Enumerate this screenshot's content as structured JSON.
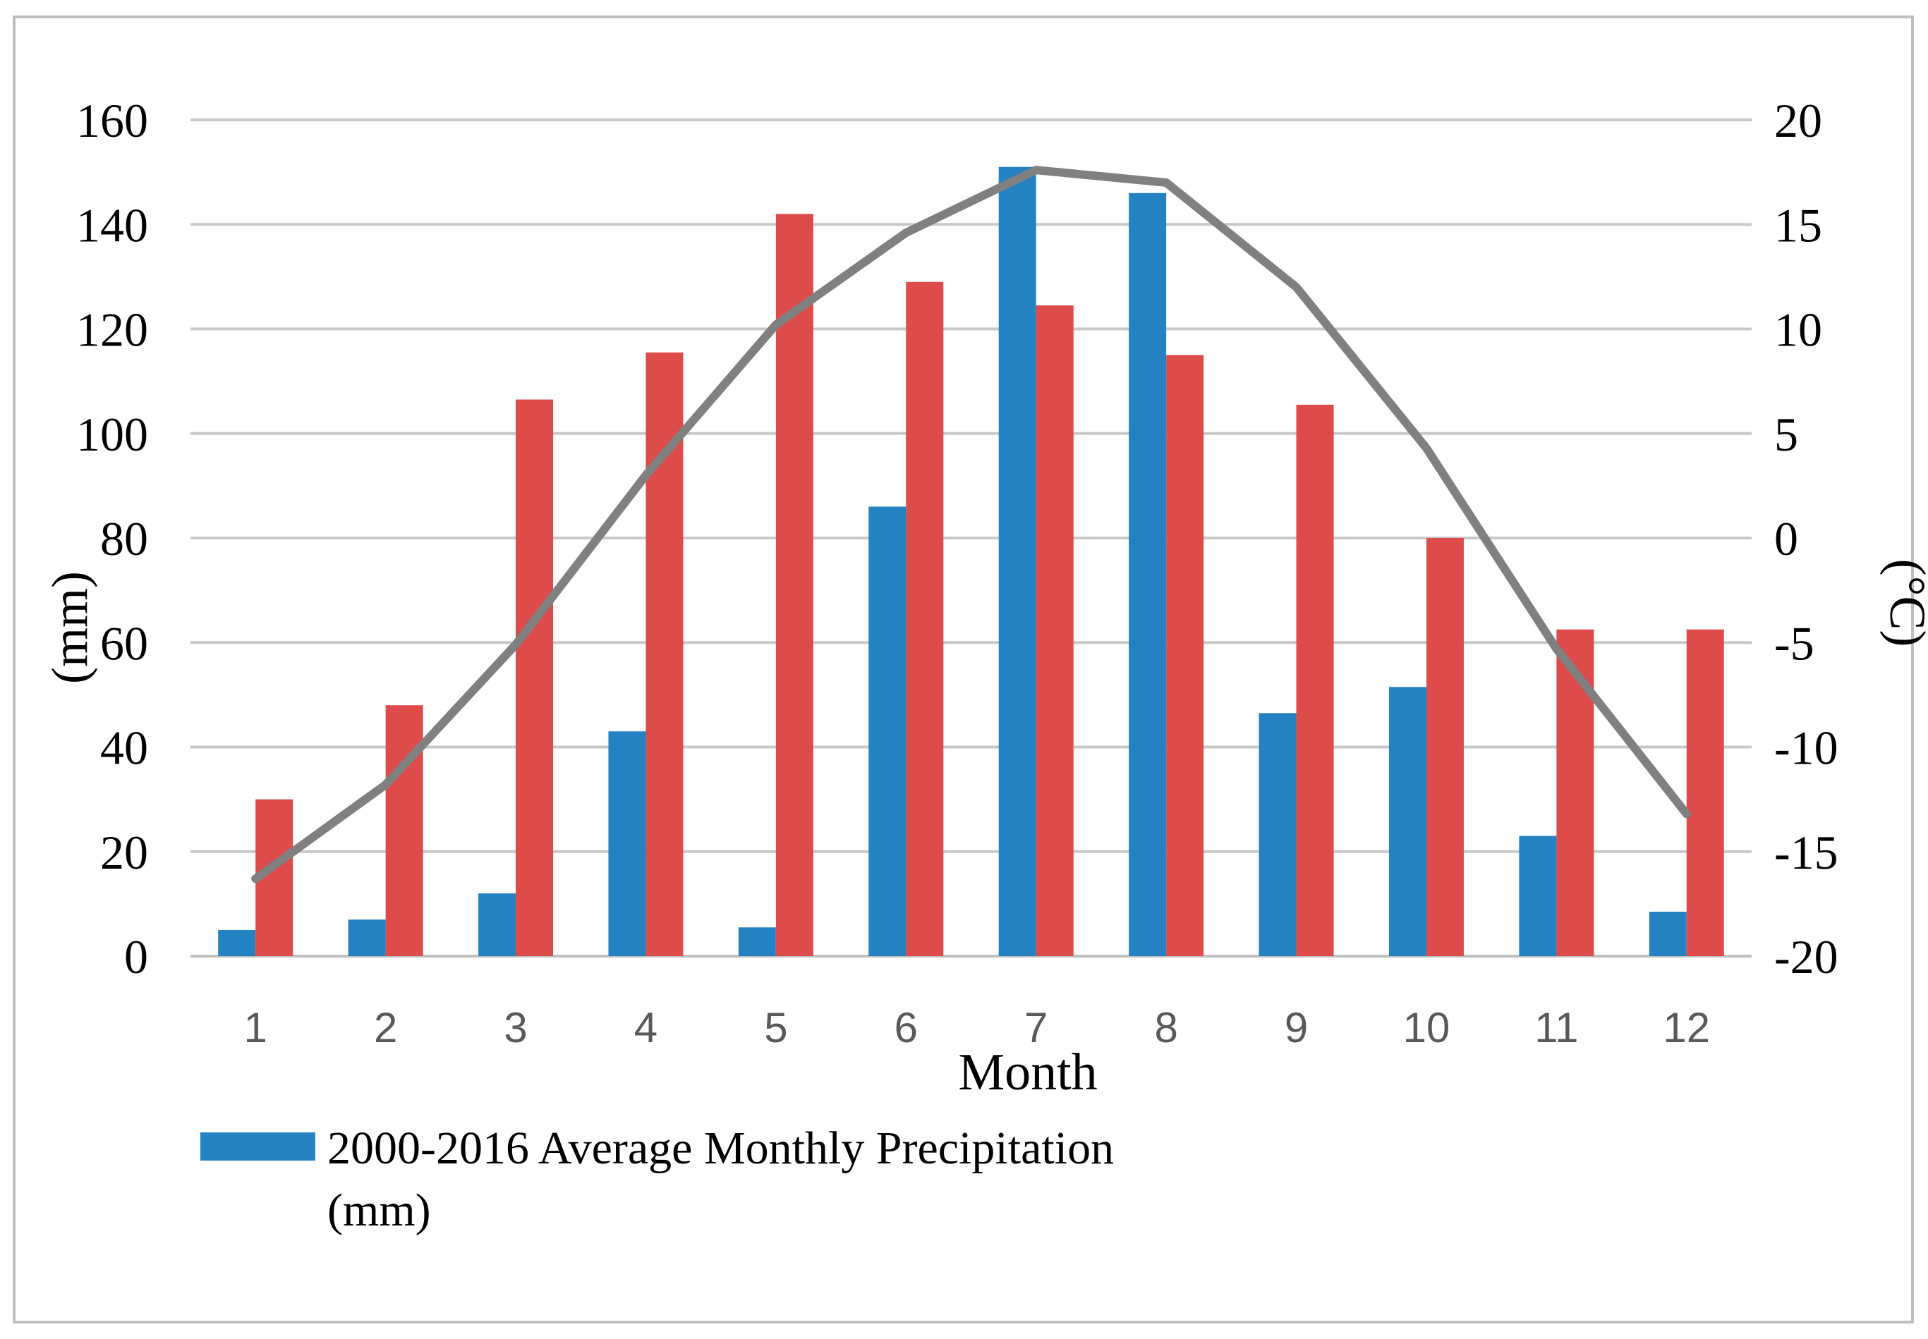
{
  "chart_data": {
    "type": "bar+line",
    "categories": [
      "1",
      "2",
      "3",
      "4",
      "5",
      "6",
      "7",
      "8",
      "9",
      "10",
      "11",
      "12"
    ],
    "xlabel": "Month",
    "ylabel_left": "(mm)",
    "ylabel_right": "(°C)",
    "ylim_left": [
      0,
      160
    ],
    "yticks_left": [
      "0",
      "20",
      "40",
      "60",
      "80",
      "100",
      "120",
      "140",
      "160"
    ],
    "ylim_right": [
      -20,
      20
    ],
    "yticks_right": [
      "-20",
      "-15",
      "-10",
      "-5",
      "0",
      "5",
      "10",
      "15",
      "20"
    ],
    "grid": true,
    "legend_position": "bottom-left",
    "series": [
      {
        "name": "2000-2016 Average Monthly Precipitation (mm)",
        "legend_line1": "2000-2016 Average Monthly Precipitation",
        "legend_line2": "(mm)",
        "type": "bar",
        "axis": "left",
        "color": "#2481c2",
        "values": [
          5,
          7,
          12,
          43,
          5.5,
          86,
          151,
          146,
          46.5,
          51.5,
          23,
          8.5
        ]
      },
      {
        "name": "",
        "type": "bar",
        "axis": "left",
        "color": "#dd4b4b",
        "values": [
          30,
          48,
          106.5,
          115.5,
          142,
          129,
          124.5,
          115,
          105.5,
          80,
          62.5,
          62.5
        ]
      },
      {
        "name": "",
        "type": "line",
        "axis": "right",
        "color": "#808080",
        "values": [
          -16.3,
          -11.8,
          -5.1,
          3.0,
          10.2,
          14.6,
          17.6,
          17.0,
          12.0,
          4.3,
          -5.3,
          -13.2
        ]
      }
    ]
  }
}
